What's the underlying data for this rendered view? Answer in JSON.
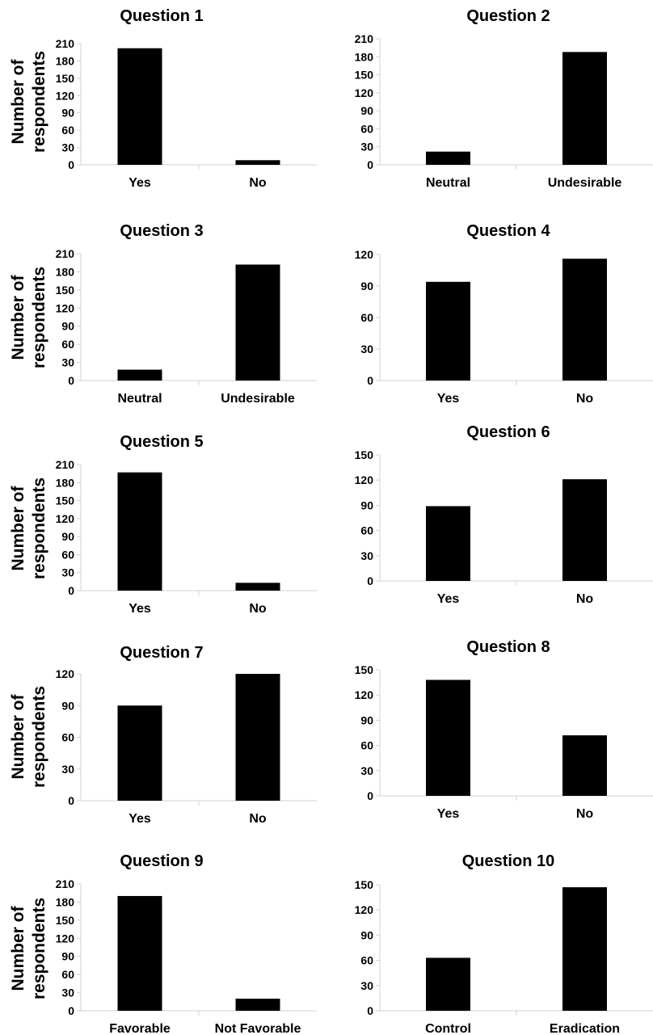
{
  "figure": {
    "shared_ylabel": [
      "Number of",
      "respondents"
    ]
  },
  "colors": {
    "bar": "#000000",
    "axis": "#d0d0d0",
    "text": "#000000",
    "background": "#ffffff"
  },
  "chart_data": [
    {
      "type": "bar",
      "title": "Question 1",
      "categories": [
        "Yes",
        "No"
      ],
      "values": [
        202,
        8
      ],
      "ylim": [
        0,
        210
      ],
      "yticks": [
        0,
        30,
        60,
        90,
        120,
        150,
        180,
        210
      ],
      "ylabel": "Number of respondents",
      "xlabel": "",
      "grid": false
    },
    {
      "type": "bar",
      "title": "Question 2",
      "categories": [
        "Neutral",
        "Undesirable"
      ],
      "values": [
        22,
        188
      ],
      "ylim": [
        0,
        210
      ],
      "yticks": [
        0,
        30,
        60,
        90,
        120,
        150,
        180,
        210
      ],
      "ylabel": "",
      "xlabel": "",
      "grid": false
    },
    {
      "type": "bar",
      "title": "Question 3",
      "categories": [
        "Neutral",
        "Undesirable"
      ],
      "values": [
        18,
        192
      ],
      "ylim": [
        0,
        210
      ],
      "yticks": [
        0,
        30,
        60,
        90,
        120,
        150,
        180,
        210
      ],
      "ylabel": "Number of respondents",
      "xlabel": "",
      "grid": false
    },
    {
      "type": "bar",
      "title": "Question 4",
      "categories": [
        "Yes",
        "No"
      ],
      "values": [
        94,
        116
      ],
      "ylim": [
        0,
        120
      ],
      "yticks": [
        0,
        30,
        60,
        90,
        120
      ],
      "ylabel": "",
      "xlabel": "",
      "grid": false
    },
    {
      "type": "bar",
      "title": "Question 5",
      "categories": [
        "Yes",
        "No"
      ],
      "values": [
        197,
        13
      ],
      "ylim": [
        0,
        210
      ],
      "yticks": [
        0,
        30,
        60,
        90,
        120,
        150,
        180,
        210
      ],
      "ylabel": "Number of respondents",
      "xlabel": "",
      "grid": false
    },
    {
      "type": "bar",
      "title": "Question 6",
      "categories": [
        "Yes",
        "No"
      ],
      "values": [
        89,
        121
      ],
      "ylim": [
        0,
        150
      ],
      "yticks": [
        0,
        30,
        60,
        90,
        120,
        150
      ],
      "ylabel": "",
      "xlabel": "",
      "grid": false
    },
    {
      "type": "bar",
      "title": "Question 7",
      "categories": [
        "Yes",
        "No"
      ],
      "values": [
        90,
        120
      ],
      "ylim": [
        0,
        120
      ],
      "yticks": [
        0,
        30,
        60,
        90,
        120
      ],
      "ylabel": "Number of respondents",
      "xlabel": "",
      "grid": false
    },
    {
      "type": "bar",
      "title": "Question 8",
      "categories": [
        "Yes",
        "No"
      ],
      "values": [
        138,
        72
      ],
      "ylim": [
        0,
        150
      ],
      "yticks": [
        0,
        30,
        60,
        90,
        120,
        150
      ],
      "ylabel": "",
      "xlabel": "",
      "grid": false
    },
    {
      "type": "bar",
      "title": "Question 9",
      "categories": [
        "Favorable",
        "Not Favorable"
      ],
      "values": [
        190,
        20
      ],
      "ylim": [
        0,
        210
      ],
      "yticks": [
        0,
        30,
        60,
        90,
        120,
        150,
        180,
        210
      ],
      "ylabel": "Number of respondents",
      "xlabel": "",
      "grid": false
    },
    {
      "type": "bar",
      "title": "Question 10",
      "categories": [
        "Control",
        "Eradication"
      ],
      "values": [
        63,
        147
      ],
      "ylim": [
        0,
        150
      ],
      "yticks": [
        0,
        30,
        60,
        90,
        120,
        150
      ],
      "ylabel": "",
      "xlabel": "",
      "grid": false
    }
  ]
}
